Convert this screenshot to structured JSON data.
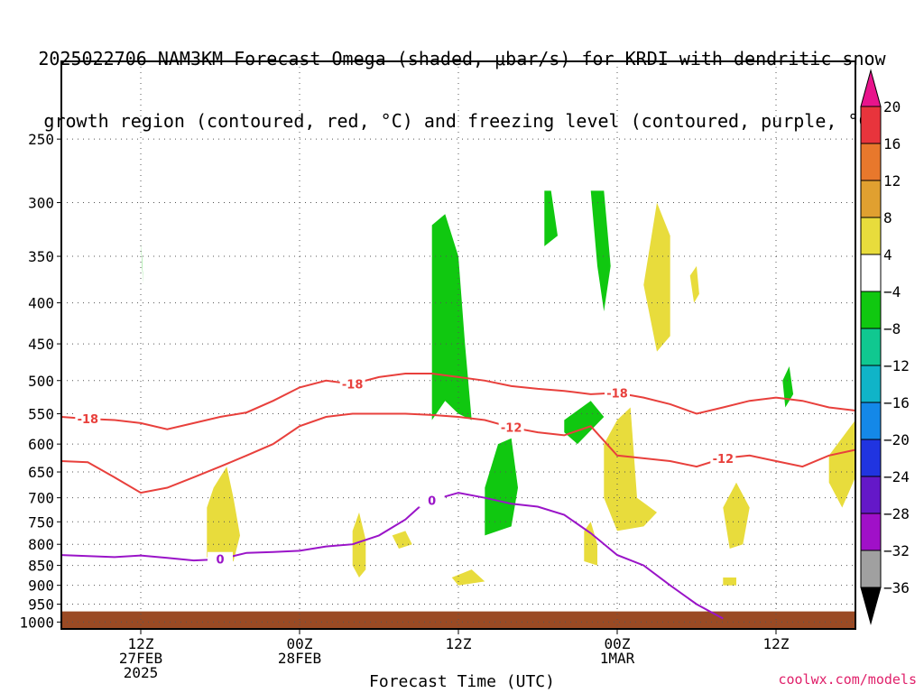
{
  "title_line1": "2025022706 NAM3KM Forecast Omega (shaded, μbar/s) for KRDI with dendritic snow",
  "title_line2": "growth region (contoured, red, °C) and freezing level (contoured, purple, °C)",
  "credit": "coolwx.com/models",
  "chart_data": {
    "type": "heatmap",
    "title": "2025022706 NAM3KM Forecast Omega (shaded, μbar/s) for KRDI with dendritic snow growth region (contoured, red, °C) and freezing level (contoured, purple, °C)",
    "xlabel": "Forecast Time (UTC)",
    "ylabel": "",
    "x_ticks": [
      {
        "label": "12Z",
        "sub": "27FEB",
        "sub2": "2025",
        "hour": 6
      },
      {
        "label": "00Z",
        "sub": "28FEB",
        "sub2": "",
        "hour": 18
      },
      {
        "label": "12Z",
        "sub": "",
        "sub2": "",
        "hour": 30
      },
      {
        "label": "00Z",
        "sub": "1MAR",
        "sub2": "",
        "hour": 42
      },
      {
        "label": "12Z",
        "sub": "",
        "sub2": "",
        "hour": 54
      }
    ],
    "xlim_hours": [
      0,
      60
    ],
    "y_ticks": [
      250,
      300,
      350,
      400,
      450,
      500,
      550,
      600,
      650,
      700,
      750,
      800,
      850,
      900,
      950,
      1000
    ],
    "ylim_hPa": [
      200,
      1020
    ],
    "y_scale": "log-pressure",
    "grid": true,
    "colorbar": {
      "labels": [
        "20",
        "16",
        "12",
        "8",
        "4",
        "−4",
        "−8",
        "−12",
        "−16",
        "−20",
        "−24",
        "−28",
        "−32",
        "−36"
      ],
      "colors": [
        "#e8148c",
        "#e8343c",
        "#e8782c",
        "#e0a030",
        "#e8dc3c",
        "#ffffff",
        "#10c810",
        "#10c890",
        "#10b4c8",
        "#1488e8",
        "#2034e0",
        "#6418c8",
        "#a010c8",
        "#a0a0a0",
        "#000000"
      ]
    },
    "contours_red": [
      {
        "label": "-18",
        "points": [
          [
            0,
            555
          ],
          [
            2,
            558
          ],
          [
            4,
            560
          ],
          [
            6,
            565
          ],
          [
            8,
            575
          ],
          [
            10,
            565
          ],
          [
            12,
            555
          ],
          [
            14,
            548
          ],
          [
            16,
            530
          ],
          [
            18,
            510
          ],
          [
            20,
            500
          ],
          [
            22,
            505
          ],
          [
            24,
            495
          ],
          [
            26,
            490
          ],
          [
            28,
            490
          ],
          [
            30,
            495
          ],
          [
            32,
            500
          ],
          [
            34,
            508
          ],
          [
            36,
            512
          ],
          [
            38,
            515
          ],
          [
            40,
            520
          ],
          [
            42,
            518
          ],
          [
            44,
            525
          ],
          [
            46,
            535
          ],
          [
            48,
            550
          ],
          [
            50,
            540
          ],
          [
            52,
            530
          ],
          [
            54,
            525
          ],
          [
            56,
            530
          ],
          [
            58,
            540
          ],
          [
            60,
            545
          ]
        ]
      },
      {
        "label": "-12",
        "points": [
          [
            0,
            630
          ],
          [
            2,
            632
          ],
          [
            4,
            660
          ],
          [
            6,
            690
          ],
          [
            8,
            680
          ],
          [
            10,
            660
          ],
          [
            12,
            640
          ],
          [
            14,
            620
          ],
          [
            16,
            600
          ],
          [
            18,
            570
          ],
          [
            20,
            555
          ],
          [
            22,
            550
          ],
          [
            24,
            550
          ],
          [
            26,
            550
          ],
          [
            28,
            552
          ],
          [
            30,
            555
          ],
          [
            32,
            560
          ],
          [
            34,
            572
          ],
          [
            36,
            580
          ],
          [
            38,
            585
          ],
          [
            40,
            570
          ],
          [
            42,
            620
          ],
          [
            44,
            625
          ],
          [
            46,
            630
          ],
          [
            48,
            640
          ],
          [
            50,
            625
          ],
          [
            52,
            620
          ],
          [
            54,
            630
          ],
          [
            56,
            640
          ],
          [
            58,
            620
          ],
          [
            60,
            610
          ]
        ]
      }
    ],
    "contour_purple": {
      "label": "0",
      "points": [
        [
          0,
          825
        ],
        [
          4,
          830
        ],
        [
          6,
          826
        ],
        [
          8,
          832
        ],
        [
          10,
          838
        ],
        [
          12,
          835
        ],
        [
          14,
          820
        ],
        [
          16,
          818
        ],
        [
          18,
          815
        ],
        [
          20,
          805
        ],
        [
          22,
          800
        ],
        [
          24,
          780
        ],
        [
          26,
          745
        ],
        [
          27,
          720
        ],
        [
          28,
          705
        ],
        [
          30,
          690
        ],
        [
          32,
          700
        ],
        [
          34,
          712
        ],
        [
          36,
          718
        ],
        [
          38,
          735
        ],
        [
          40,
          775
        ],
        [
          42,
          825
        ],
        [
          44,
          850
        ],
        [
          46,
          900
        ],
        [
          48,
          950
        ],
        [
          50,
          990
        ]
      ]
    },
    "shaded_regions": [
      {
        "value": -6,
        "points": [
          [
            6,
            335
          ],
          [
            6.1,
            355
          ],
          [
            6.2,
            380
          ],
          [
            6.1,
            360
          ]
        ]
      },
      {
        "value": 6,
        "points": [
          [
            11,
            720
          ],
          [
            11.5,
            680
          ],
          [
            12.5,
            640
          ],
          [
            13,
            700
          ],
          [
            13.5,
            780
          ],
          [
            13,
            840
          ],
          [
            12,
            850
          ],
          [
            11,
            830
          ]
        ]
      },
      {
        "value": 6,
        "points": [
          [
            22,
            770
          ],
          [
            22.5,
            730
          ],
          [
            23,
            790
          ],
          [
            23,
            860
          ],
          [
            22.5,
            880
          ],
          [
            22,
            850
          ]
        ]
      },
      {
        "value": 6,
        "points": [
          [
            25,
            780
          ],
          [
            26,
            770
          ],
          [
            26.5,
            800
          ],
          [
            25.5,
            810
          ]
        ]
      },
      {
        "value": -6,
        "points": [
          [
            28,
            320
          ],
          [
            29,
            310
          ],
          [
            30,
            350
          ],
          [
            30.5,
            450
          ],
          [
            31,
            560
          ],
          [
            30,
            550
          ],
          [
            29,
            530
          ],
          [
            28,
            560
          ],
          [
            28,
            450
          ]
        ]
      },
      {
        "value": -6,
        "points": [
          [
            32,
            680
          ],
          [
            33,
            600
          ],
          [
            34,
            590
          ],
          [
            34.5,
            680
          ],
          [
            34,
            760
          ],
          [
            32,
            780
          ]
        ]
      },
      {
        "value": 6,
        "points": [
          [
            29.5,
            880
          ],
          [
            31,
            860
          ],
          [
            32,
            890
          ],
          [
            30,
            900
          ]
        ]
      },
      {
        "value": -6,
        "points": [
          [
            36.5,
            290
          ],
          [
            37,
            290
          ],
          [
            37.5,
            330
          ],
          [
            36.5,
            340
          ]
        ]
      },
      {
        "value": -6,
        "points": [
          [
            38,
            560
          ],
          [
            40,
            530
          ],
          [
            41,
            555
          ],
          [
            39,
            600
          ],
          [
            38,
            580
          ]
        ]
      },
      {
        "value": -6,
        "points": [
          [
            40,
            290
          ],
          [
            41,
            290
          ],
          [
            41.5,
            360
          ],
          [
            41,
            410
          ],
          [
            40.5,
            360
          ]
        ]
      },
      {
        "value": 6,
        "points": [
          [
            39.5,
            770
          ],
          [
            40,
            750
          ],
          [
            40.5,
            800
          ],
          [
            40.5,
            850
          ],
          [
            39.5,
            840
          ]
        ]
      },
      {
        "value": 6,
        "points": [
          [
            41,
            600
          ],
          [
            42,
            560
          ],
          [
            43,
            540
          ],
          [
            43.5,
            700
          ],
          [
            45,
            730
          ],
          [
            44,
            760
          ],
          [
            42,
            770
          ],
          [
            41,
            700
          ]
        ]
      },
      {
        "value": 6,
        "points": [
          [
            44,
            380
          ],
          [
            45,
            300
          ],
          [
            46,
            330
          ],
          [
            46,
            440
          ],
          [
            45,
            460
          ]
        ]
      },
      {
        "value": 6,
        "points": [
          [
            47.5,
            370
          ],
          [
            48,
            360
          ],
          [
            48.2,
            390
          ],
          [
            47.8,
            400
          ]
        ]
      },
      {
        "value": 6,
        "points": [
          [
            50,
            720
          ],
          [
            51,
            670
          ],
          [
            52,
            720
          ],
          [
            51.5,
            800
          ],
          [
            50.5,
            810
          ]
        ]
      },
      {
        "value": 6,
        "points": [
          [
            50,
            880
          ],
          [
            51,
            880
          ],
          [
            51,
            900
          ],
          [
            50,
            900
          ]
        ]
      },
      {
        "value": -6,
        "points": [
          [
            54.5,
            500
          ],
          [
            55,
            480
          ],
          [
            55.3,
            520
          ],
          [
            54.7,
            540
          ]
        ]
      },
      {
        "value": 6,
        "points": [
          [
            58,
            620
          ],
          [
            60,
            560
          ],
          [
            60,
            660
          ],
          [
            59,
            720
          ],
          [
            58,
            670
          ]
        ]
      }
    ],
    "ground_hPa": 970
  }
}
